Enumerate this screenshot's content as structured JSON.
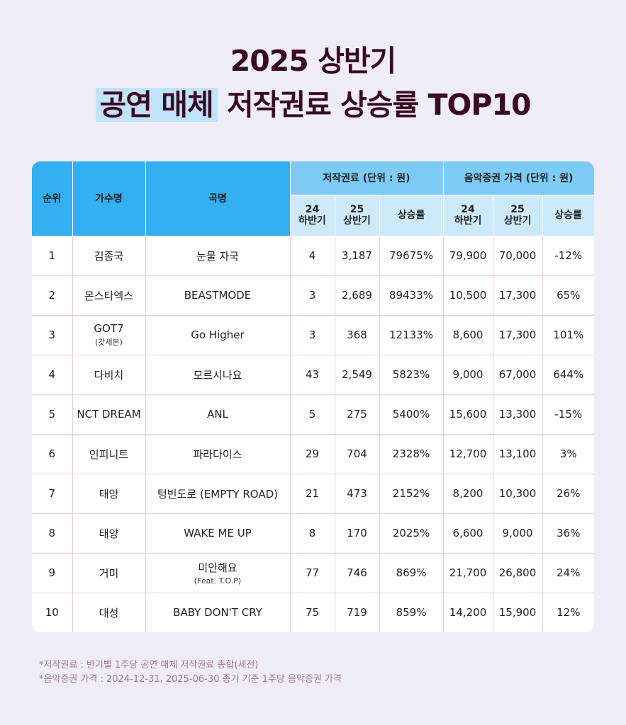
{
  "title": {
    "line1": "2025 상반기",
    "line2_highlight": "공연 매체",
    "line2_rest": "저작권료 상승률 TOP10"
  },
  "table": {
    "headers": {
      "rank": "순위",
      "artist": "가수명",
      "song": "곡명",
      "royalty_group": "저작권료 (단위 : 원)",
      "stock_group": "음악증권 가격 (단위 : 원)",
      "h24_top": "24",
      "h24_bottom": "하반기",
      "h25_top": "25",
      "h25_bottom": "상반기",
      "rate": "상승률"
    },
    "rows": [
      {
        "rank": "1",
        "artist": "김종국",
        "artist_sub": "",
        "song": "눈물 자국",
        "song_sub": "",
        "r24": "4",
        "r25": "3,187",
        "r_rate": "79675%",
        "p24": "79,900",
        "p25": "70,000",
        "p_rate": "-12%"
      },
      {
        "rank": "2",
        "artist": "몬스타엑스",
        "artist_sub": "",
        "song": "BEASTMODE",
        "song_sub": "",
        "r24": "3",
        "r25": "2,689",
        "r_rate": "89433%",
        "p24": "10,500",
        "p25": "17,300",
        "p_rate": "65%"
      },
      {
        "rank": "3",
        "artist": "GOT7",
        "artist_sub": "(갓세븐)",
        "song": "Go Higher",
        "song_sub": "",
        "r24": "3",
        "r25": "368",
        "r_rate": "12133%",
        "p24": "8,600",
        "p25": "17,300",
        "p_rate": "101%"
      },
      {
        "rank": "4",
        "artist": "다비치",
        "artist_sub": "",
        "song": "모르시나요",
        "song_sub": "",
        "r24": "43",
        "r25": "2,549",
        "r_rate": "5823%",
        "p24": "9,000",
        "p25": "67,000",
        "p_rate": "644%"
      },
      {
        "rank": "5",
        "artist": "NCT DREAM",
        "artist_sub": "",
        "song": "ANL",
        "song_sub": "",
        "r24": "5",
        "r25": "275",
        "r_rate": "5400%",
        "p24": "15,600",
        "p25": "13,300",
        "p_rate": "-15%"
      },
      {
        "rank": "6",
        "artist": "인피니트",
        "artist_sub": "",
        "song": "파라다이스",
        "song_sub": "",
        "r24": "29",
        "r25": "704",
        "r_rate": "2328%",
        "p24": "12,700",
        "p25": "13,100",
        "p_rate": "3%"
      },
      {
        "rank": "7",
        "artist": "태양",
        "artist_sub": "",
        "song": "텅빈도로 (EMPTY ROAD)",
        "song_sub": "",
        "r24": "21",
        "r25": "473",
        "r_rate": "2152%",
        "p24": "8,200",
        "p25": "10,300",
        "p_rate": "26%"
      },
      {
        "rank": "8",
        "artist": "태양",
        "artist_sub": "",
        "song": "WAKE ME UP",
        "song_sub": "",
        "r24": "8",
        "r25": "170",
        "r_rate": "2025%",
        "p24": "6,600",
        "p25": "9,000",
        "p_rate": "36%"
      },
      {
        "rank": "9",
        "artist": "거미",
        "artist_sub": "",
        "song": "미안해요",
        "song_sub": "(Feat. T.O.P)",
        "r24": "77",
        "r25": "746",
        "r_rate": "869%",
        "p24": "21,700",
        "p25": "26,800",
        "p_rate": "24%"
      },
      {
        "rank": "10",
        "artist": "대성",
        "artist_sub": "",
        "song": "BABY DON'T CRY",
        "song_sub": "",
        "r24": "75",
        "r25": "719",
        "r_rate": "859%",
        "p24": "14,200",
        "p25": "15,900",
        "p_rate": "12%"
      }
    ]
  },
  "notes": {
    "line1": "*저작권료 : 반기별 1주당 공연 매체 저작권료 총합(세전)",
    "line2": "*음악증권 가격 : 2024-12-31, 2025-06-30 종가 기준 1주당 음악증권 가격"
  },
  "colors": {
    "background": "#efeef8",
    "header_blue": "#33b0f2",
    "header_light": "#cdeafb",
    "highlight": "#bfe3fb",
    "title": "#3a0a22",
    "note": "#a0768a",
    "row_border": "#f1c9d3"
  }
}
